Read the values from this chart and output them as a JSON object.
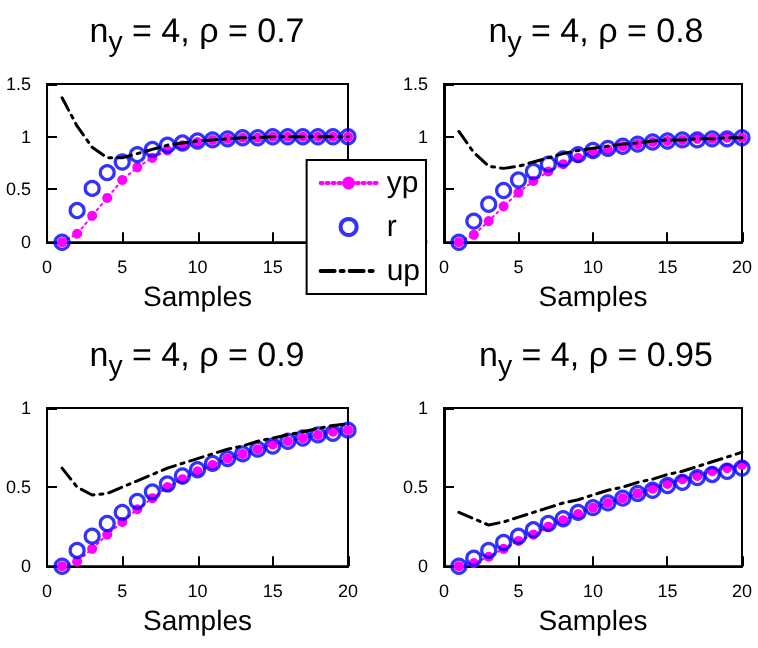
{
  "chart_data": [
    {
      "type": "line",
      "title": "n$_{y}$ = 4, ρ = 0.7",
      "xlabel": "Samples",
      "x": [
        1,
        2,
        3,
        4,
        5,
        6,
        7,
        8,
        9,
        10,
        11,
        12,
        13,
        14,
        15,
        16,
        17,
        18,
        19,
        20
      ],
      "xlim": [
        0,
        20
      ],
      "xticks": [
        0,
        5,
        10,
        15
      ],
      "ylim": [
        0,
        1.5
      ],
      "yticks": [
        0,
        0.5,
        1,
        1.5
      ],
      "legend": "right",
      "series": [
        {
          "name": "yp",
          "type": "line",
          "color": "#ff00ff",
          "marker": "circle",
          "line_style": "dotted",
          "values": [
            0,
            0.08,
            0.25,
            0.42,
            0.59,
            0.71,
            0.8,
            0.87,
            0.92,
            0.95,
            0.97,
            0.98,
            0.99,
            0.99,
            1,
            1,
            1,
            1,
            1,
            1
          ]
        },
        {
          "name": "r",
          "type": "scatter",
          "color": "#0000ff",
          "marker": "circle",
          "values": [
            0,
            0.3,
            0.51,
            0.66,
            0.76,
            0.83,
            0.88,
            0.92,
            0.94,
            0.96,
            0.97,
            0.98,
            0.99,
            0.99,
            1,
            1,
            1,
            1,
            1,
            1
          ]
        },
        {
          "name": "up",
          "type": "line",
          "color": "#000000",
          "marker": "none",
          "line_style": "dashed",
          "values": [
            1.37,
            1.1,
            0.9,
            0.8,
            0.8,
            0.84,
            0.88,
            0.92,
            0.94,
            0.96,
            0.97,
            0.98,
            0.99,
            0.99,
            1,
            1,
            1,
            1,
            1,
            1
          ]
        }
      ]
    },
    {
      "type": "line",
      "title": "n$_{y}$ = 4, ρ = 0.8",
      "xlabel": "Samples",
      "x": [
        1,
        2,
        3,
        4,
        5,
        6,
        7,
        8,
        9,
        10,
        11,
        12,
        13,
        14,
        15,
        16,
        17,
        18,
        19,
        20
      ],
      "xlim": [
        0,
        20
      ],
      "xticks": [
        0,
        5,
        10,
        15,
        20
      ],
      "ylim": [
        0,
        1.5
      ],
      "yticks": [
        0,
        {
          "value": 0.5,
          "label": null
        },
        1,
        1.5
      ],
      "series": [
        {
          "type": "line",
          "color": "#ff00ff",
          "marker": "circle",
          "line_style": "dotted",
          "values": [
            0,
            0.07,
            0.2,
            0.34,
            0.47,
            0.58,
            0.67,
            0.74,
            0.8,
            0.85,
            0.88,
            0.91,
            0.93,
            0.95,
            0.96,
            0.97,
            0.98,
            0.98,
            0.99,
            0.99
          ]
        },
        {
          "type": "scatter",
          "color": "#0000ff",
          "marker": "circle",
          "values": [
            0,
            0.2,
            0.36,
            0.49,
            0.59,
            0.67,
            0.74,
            0.79,
            0.83,
            0.87,
            0.89,
            0.91,
            0.93,
            0.95,
            0.96,
            0.97,
            0.97,
            0.98,
            0.98,
            0.99
          ]
        },
        {
          "type": "line",
          "color": "#000000",
          "marker": "none",
          "line_style": "dashed",
          "values": [
            1.05,
            0.85,
            0.72,
            0.7,
            0.72,
            0.76,
            0.8,
            0.84,
            0.87,
            0.89,
            0.91,
            0.93,
            0.94,
            0.96,
            0.97,
            0.97,
            0.98,
            0.98,
            0.99,
            0.99
          ]
        }
      ]
    },
    {
      "type": "line",
      "title": "n$_{y}$ = 4, ρ = 0.9",
      "xlabel": "Samples",
      "x": [
        1,
        2,
        3,
        4,
        5,
        6,
        7,
        8,
        9,
        10,
        11,
        12,
        13,
        14,
        15,
        16,
        17,
        18,
        19,
        20
      ],
      "xlim": [
        0,
        20
      ],
      "xticks": [
        0,
        5,
        10,
        15,
        20
      ],
      "ylim": [
        0,
        1
      ],
      "yticks": [
        0,
        0.5,
        1
      ],
      "series": [
        {
          "type": "line",
          "color": "#ff00ff",
          "marker": "circle",
          "line_style": "dotted",
          "values": [
            0,
            0.03,
            0.11,
            0.2,
            0.28,
            0.36,
            0.43,
            0.5,
            0.55,
            0.6,
            0.64,
            0.68,
            0.71,
            0.74,
            0.77,
            0.79,
            0.81,
            0.83,
            0.85,
            0.86
          ]
        },
        {
          "type": "scatter",
          "color": "#0000ff",
          "marker": "circle",
          "values": [
            0,
            0.1,
            0.19,
            0.27,
            0.34,
            0.41,
            0.47,
            0.52,
            0.57,
            0.61,
            0.65,
            0.68,
            0.71,
            0.74,
            0.76,
            0.79,
            0.81,
            0.83,
            0.84,
            0.86
          ]
        },
        {
          "type": "line",
          "color": "#000000",
          "marker": "none",
          "line_style": "dashed",
          "values": [
            0.62,
            0.5,
            0.45,
            0.46,
            0.5,
            0.54,
            0.58,
            0.62,
            0.65,
            0.68,
            0.71,
            0.74,
            0.76,
            0.79,
            0.81,
            0.83,
            0.85,
            0.87,
            0.89,
            0.9
          ]
        }
      ]
    },
    {
      "type": "line",
      "title": "n$_{y}$ = 4, ρ = 0.95",
      "xlabel": "Samples",
      "x": [
        1,
        2,
        3,
        4,
        5,
        6,
        7,
        8,
        9,
        10,
        11,
        12,
        13,
        14,
        15,
        16,
        17,
        18,
        19,
        20
      ],
      "xlim": [
        0,
        20
      ],
      "xticks": [
        0,
        5,
        10,
        15,
        20
      ],
      "ylim": [
        0,
        1
      ],
      "yticks": [
        0,
        0.5,
        1
      ],
      "series": [
        {
          "type": "line",
          "color": "#ff00ff",
          "marker": "circle",
          "line_style": "dotted",
          "values": [
            0,
            0.02,
            0.06,
            0.11,
            0.16,
            0.2,
            0.25,
            0.29,
            0.33,
            0.37,
            0.4,
            0.43,
            0.46,
            0.49,
            0.52,
            0.55,
            0.57,
            0.6,
            0.62,
            0.64
          ]
        },
        {
          "type": "scatter",
          "color": "#0000ff",
          "marker": "circle",
          "values": [
            0,
            0.05,
            0.1,
            0.15,
            0.19,
            0.23,
            0.27,
            0.3,
            0.34,
            0.37,
            0.4,
            0.43,
            0.46,
            0.48,
            0.51,
            0.53,
            0.56,
            0.58,
            0.6,
            0.62
          ]
        },
        {
          "type": "line",
          "color": "#000000",
          "marker": "none",
          "line_style": "dashed",
          "values": [
            0.34,
            0.3,
            0.26,
            0.28,
            0.31,
            0.34,
            0.37,
            0.4,
            0.42,
            0.45,
            0.48,
            0.5,
            0.53,
            0.55,
            0.58,
            0.6,
            0.63,
            0.66,
            0.69,
            0.72
          ]
        }
      ]
    }
  ]
}
